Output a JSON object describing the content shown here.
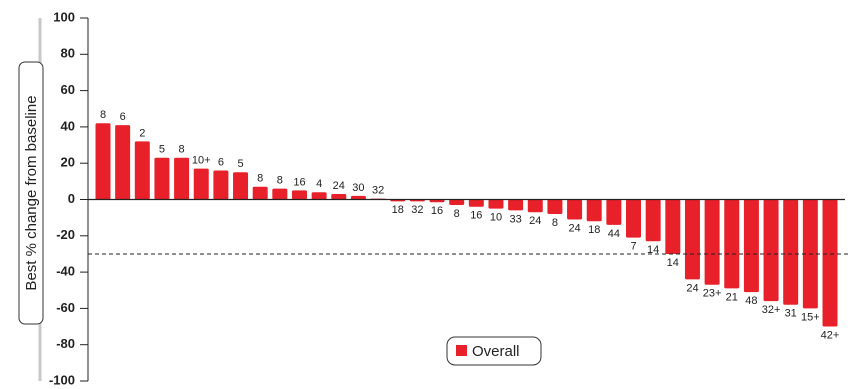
{
  "chart_data": {
    "type": "bar",
    "y_label": "Best % change from baseline",
    "legend": "Overall",
    "color": "#e8202a",
    "ylim": [
      -100,
      100
    ],
    "yticks": [
      -100,
      -80,
      -60,
      -40,
      -20,
      0,
      20,
      40,
      60,
      80,
      100
    ],
    "reference_line": -30,
    "labels": [
      "8",
      "6",
      "2",
      "5",
      "8",
      "10+",
      "6",
      "5",
      "8",
      "8",
      "16",
      "4",
      "24",
      "30",
      "32",
      "18",
      "32",
      "16",
      "8",
      "16",
      "10",
      "33",
      "24",
      "8",
      "24",
      "18",
      "44",
      "7",
      "14",
      "14",
      "24",
      "23+",
      "21",
      "48",
      "32+",
      "31",
      "15+",
      "42+"
    ],
    "values": [
      42,
      41,
      32,
      23,
      23,
      17,
      16,
      15,
      7,
      6,
      5,
      4,
      3,
      2,
      0.5,
      -1,
      -1,
      -1.5,
      -3,
      -4,
      -5,
      -6,
      -7,
      -8,
      -11,
      -12,
      -14,
      -21,
      -23,
      -30,
      -44,
      -47,
      -49,
      -51,
      -56,
      -58,
      -60,
      -70
    ]
  }
}
